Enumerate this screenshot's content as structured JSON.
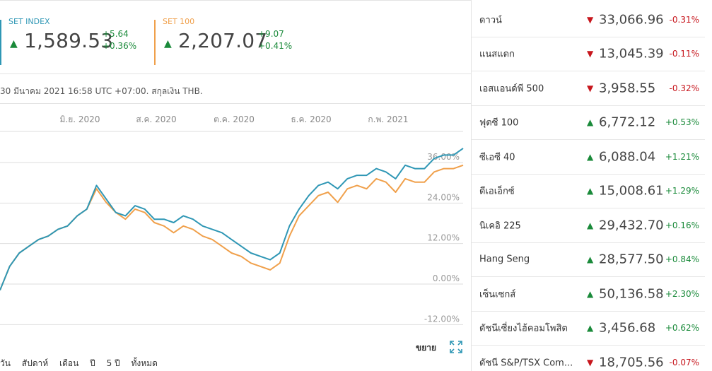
{
  "indices": [
    {
      "name": "SET INDEX",
      "value": "1,589.53",
      "change": "+5.64",
      "change_pct": "+0.36%",
      "color": "#2f97b5",
      "direction": "up"
    },
    {
      "name": "SET 100",
      "value": "2,207.07",
      "change": "+9.07",
      "change_pct": "+0.41%",
      "color": "#f0a04b",
      "direction": "up"
    }
  ],
  "as_of": "30 มีนาคม 2021 16:58 UTC +07:00. สกุลเงิน THB.",
  "chart_data": {
    "type": "line",
    "x_tick_labels": [
      "มิ.ย. 2020",
      "ส.ค. 2020",
      "ต.ค. 2020",
      "ธ.ค. 2020",
      "ก.พ. 2021"
    ],
    "y_tick_labels": [
      "36.00%",
      "24.00%",
      "12.00%",
      "0.00%",
      "-12.00%"
    ],
    "ylim": [
      -12,
      38
    ],
    "series": [
      {
        "name": "SET INDEX",
        "color": "#2f97b5",
        "values": [
          -2,
          5,
          9,
          11,
          13,
          14,
          16,
          17,
          20,
          22,
          29,
          25,
          21,
          20,
          23,
          22,
          19,
          19,
          18,
          20,
          19,
          17,
          16,
          15,
          13,
          11,
          9,
          8,
          7,
          9,
          17,
          22,
          26,
          29,
          30,
          28,
          31,
          32,
          32,
          34,
          33,
          31,
          35,
          34,
          34,
          37,
          38,
          38,
          40
        ]
      },
      {
        "name": "SET 100",
        "color": "#f0a04b",
        "values": [
          -2,
          5,
          9,
          11,
          13,
          14,
          16,
          17,
          20,
          22,
          28,
          24,
          21,
          19,
          22,
          21,
          18,
          17,
          15,
          17,
          16,
          14,
          13,
          11,
          9,
          8,
          6,
          5,
          4,
          6,
          14,
          20,
          23,
          26,
          27,
          24,
          28,
          29,
          28,
          31,
          30,
          27,
          31,
          30,
          30,
          33,
          34,
          34,
          35
        ]
      }
    ]
  },
  "expand_label": "ขยาย",
  "ranges": [
    "วัน",
    "สัปดาห์",
    "เดือน",
    "ปี",
    "5 ปี",
    "ทั้งหมด"
  ],
  "markets": [
    {
      "label": "ดาวน์",
      "value": "33,066.96",
      "pct": "-0.31%",
      "direction": "down"
    },
    {
      "label": "แนสแดก",
      "value": "13,045.39",
      "pct": "-0.11%",
      "direction": "down"
    },
    {
      "label": "เอสแอนด์พี 500",
      "value": "3,958.55",
      "pct": "-0.32%",
      "direction": "down"
    },
    {
      "label": "ฟุตซี 100",
      "value": "6,772.12",
      "pct": "+0.53%",
      "direction": "up"
    },
    {
      "label": "ซีเอซี 40",
      "value": "6,088.04",
      "pct": "+1.21%",
      "direction": "up"
    },
    {
      "label": "ดีเอเอ็กซ์",
      "value": "15,008.61",
      "pct": "+1.29%",
      "direction": "up"
    },
    {
      "label": "นิเคอิ 225",
      "value": "29,432.70",
      "pct": "+0.16%",
      "direction": "up"
    },
    {
      "label": "Hang Seng",
      "value": "28,577.50",
      "pct": "+0.84%",
      "direction": "up"
    },
    {
      "label": "เซ็นเซกส์",
      "value": "50,136.58",
      "pct": "+2.30%",
      "direction": "up"
    },
    {
      "label": "ดัชนีเซี่ยงไฮ้คอมโพสิต",
      "value": "3,456.68",
      "pct": "+0.62%",
      "direction": "up"
    },
    {
      "label": "ดัชนี S&P/TSX Com...",
      "value": "18,705.56",
      "pct": "-0.07%",
      "direction": "down"
    }
  ]
}
